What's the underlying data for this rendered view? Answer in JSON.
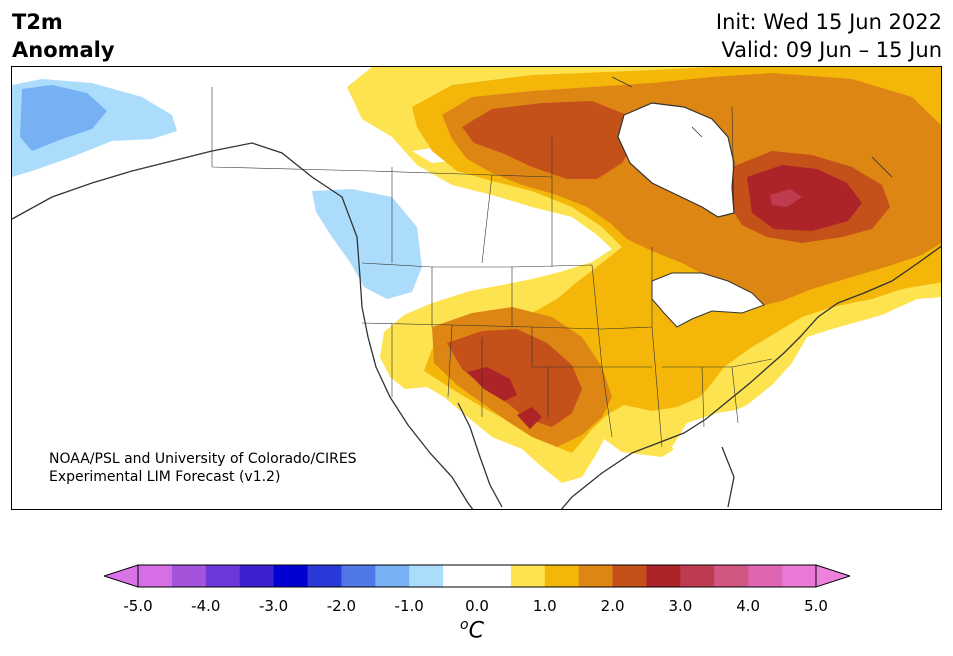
{
  "header": {
    "title_line1": "T2m",
    "title_line2": "Anomaly",
    "init": "Init: Wed 15 Jun 2022",
    "valid": "Valid: 09 Jun – 15 Jun"
  },
  "credit": {
    "line1": "NOAA/PSL and University of Colorado/CIRES",
    "line2": "Experimental LIM Forecast (v1.2)"
  },
  "colorbar": {
    "unit_base": "C",
    "unit_sup": "o",
    "ticks": [
      "-5.0",
      "-4.0",
      "-3.0",
      "-2.0",
      "-1.0",
      "0.0",
      "1.0",
      "2.0",
      "3.0",
      "4.0",
      "5.0"
    ],
    "colors": [
      "#d66ee6",
      "#a454db",
      "#6b38dc",
      "#3a20cf",
      "#0000d2",
      "#2a3ad8",
      "#4f78e6",
      "#76b1f4",
      "#acdcfb",
      "#ffffff",
      "#ffffff",
      "#fde34f",
      "#f3b609",
      "#de8613",
      "#c4501a",
      "#ad2428",
      "#bf3b51",
      "#d15680",
      "#df65b0",
      "#e87ad6"
    ],
    "under_color": "#d972e6",
    "over_color": "#ec82dd"
  }
}
